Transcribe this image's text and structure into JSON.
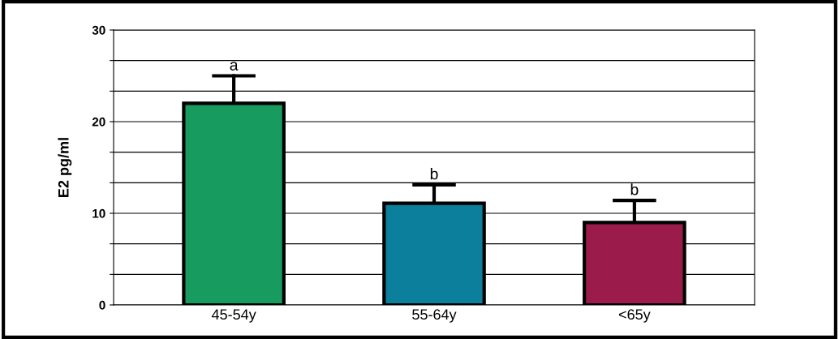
{
  "chart_data": {
    "type": "bar",
    "ylabel": "E2 pg/ml",
    "categories": [
      "45-54y",
      "55-64y",
      "<65y"
    ],
    "values": [
      22,
      11.1,
      9.0
    ],
    "colors": [
      "#179b5f",
      "#0b7f9b",
      "#9b1c4a"
    ],
    "errors": [
      [
        22,
        25
      ],
      [
        11.1,
        13.1
      ],
      [
        9.0,
        11.4
      ]
    ],
    "ylim": [
      0,
      30
    ],
    "yticks": [
      0,
      {
        "value": 3.33,
        "label": null
      },
      {
        "value": 6.67,
        "label": null
      },
      10,
      {
        "value": 13.33,
        "label": null
      },
      {
        "value": 16.67,
        "label": null
      },
      20,
      {
        "value": 23.33,
        "label": null
      },
      {
        "value": 26.67,
        "label": null
      },
      30
    ],
    "grid": "y",
    "annotations": [
      {
        "text": "a",
        "x": "45-54y",
        "y": 25
      },
      {
        "text": "b",
        "x": "55-64y",
        "y": 13.1
      },
      {
        "text": "b",
        "x": "<65y",
        "y": 11.4
      }
    ]
  }
}
